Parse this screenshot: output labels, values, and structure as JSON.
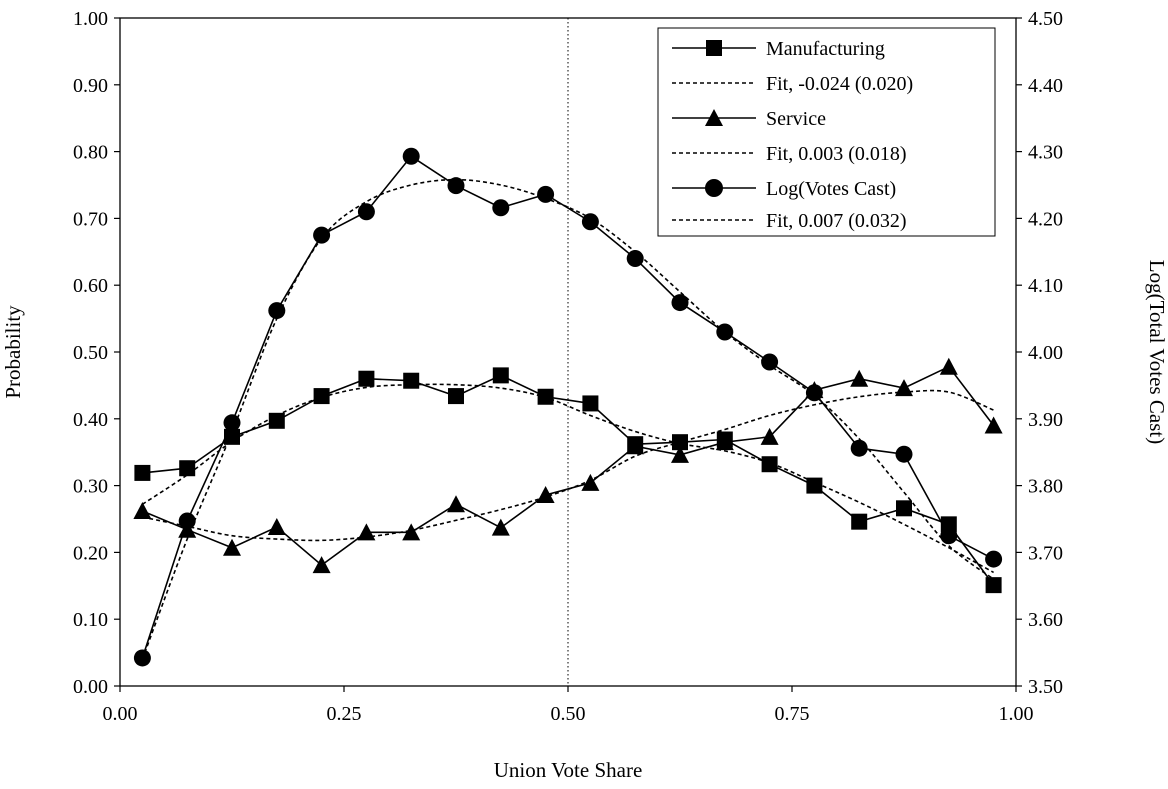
{
  "chart_data": {
    "type": "line",
    "xlabel": "Union Vote Share",
    "ylabel": "Probability",
    "y2label": "Log(Total Votes Cast)",
    "xlim": [
      0,
      1
    ],
    "ylim": [
      0,
      1
    ],
    "y2lim": [
      3.5,
      4.5
    ],
    "xticks": [
      "0.00",
      "0.25",
      "0.50",
      "0.75",
      "1.00"
    ],
    "yticks": [
      "0.00",
      "0.10",
      "0.20",
      "0.30",
      "0.40",
      "0.50",
      "0.60",
      "0.70",
      "0.80",
      "0.90",
      "1.00"
    ],
    "y2ticks": [
      "3.50",
      "3.60",
      "3.70",
      "3.80",
      "3.90",
      "4.00",
      "4.10",
      "4.20",
      "4.30",
      "4.40",
      "4.50"
    ],
    "threshold_line_x": 0.5,
    "grid": false,
    "legend_position": "top-right",
    "x": [
      0.025,
      0.075,
      0.125,
      0.175,
      0.225,
      0.275,
      0.325,
      0.375,
      0.425,
      0.475,
      0.525,
      0.575,
      0.625,
      0.675,
      0.725,
      0.775,
      0.825,
      0.875,
      0.925,
      0.975
    ],
    "series": [
      {
        "name": "Manufacturing",
        "axis": "left",
        "marker": "square",
        "values": [
          0.319,
          0.326,
          0.373,
          0.397,
          0.434,
          0.46,
          0.457,
          0.434,
          0.465,
          0.433,
          0.423,
          0.362,
          0.365,
          0.369,
          0.332,
          0.3,
          0.246,
          0.266,
          0.242,
          0.151
        ]
      },
      {
        "name": "Fit, -0.024 (0.020)",
        "axis": "left",
        "style": "dotted",
        "values": [
          0.272,
          0.316,
          0.366,
          0.405,
          0.432,
          0.447,
          0.451,
          0.451,
          0.446,
          0.432,
          0.405,
          0.381,
          0.363,
          0.352,
          0.334,
          0.305,
          0.275,
          0.242,
          0.207,
          0.17
        ]
      },
      {
        "name": "Service",
        "axis": "left",
        "marker": "triangle",
        "values": [
          0.262,
          0.234,
          0.207,
          0.238,
          0.181,
          0.23,
          0.23,
          0.272,
          0.237,
          0.286,
          0.304,
          0.359,
          0.346,
          0.365,
          0.373,
          0.443,
          0.46,
          0.446,
          0.478,
          0.39
        ]
      },
      {
        "name": "Fit, 0.003 (0.018)",
        "axis": "left",
        "style": "dotted",
        "values": [
          0.253,
          0.239,
          0.225,
          0.22,
          0.218,
          0.223,
          0.233,
          0.248,
          0.264,
          0.283,
          0.308,
          0.344,
          0.365,
          0.384,
          0.405,
          0.421,
          0.433,
          0.44,
          0.44,
          0.413
        ]
      },
      {
        "name": "Log(Votes Cast)",
        "axis": "right",
        "marker": "circle",
        "values": [
          3.542,
          3.747,
          3.894,
          4.062,
          4.175,
          4.21,
          4.293,
          4.249,
          4.216,
          4.236,
          4.195,
          4.14,
          4.074,
          4.03,
          3.985,
          3.939,
          3.856,
          3.847,
          3.725,
          3.69
        ]
      },
      {
        "name": "Fit, 0.007 (0.032)",
        "axis": "right",
        "style": "dotted",
        "values": [
          3.54,
          3.72,
          3.88,
          4.05,
          4.17,
          4.225,
          4.25,
          4.258,
          4.25,
          4.23,
          4.2,
          4.15,
          4.09,
          4.03,
          3.98,
          3.935,
          3.87,
          3.79,
          3.71,
          3.66
        ]
      }
    ]
  }
}
